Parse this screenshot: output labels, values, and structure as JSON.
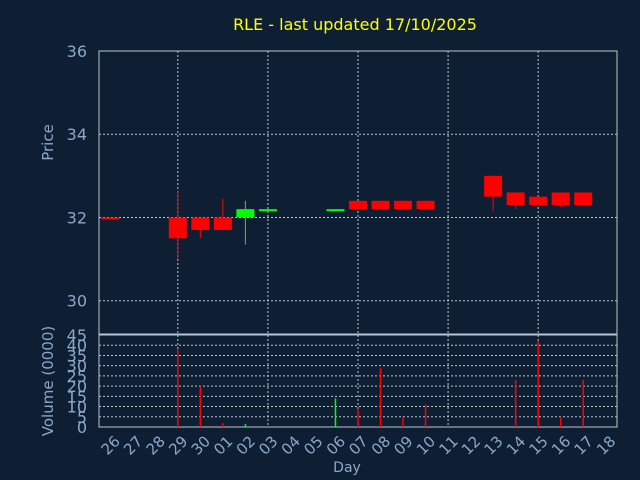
{
  "chart_data": {
    "type": "candlestick",
    "title": "RLE - last updated 17/10/2025",
    "ylabel": "Price",
    "volume_ylabel": "Volume (0000)",
    "xlabel": "Day",
    "x_tick_labels": [
      "26",
      "27",
      "28",
      "29",
      "30",
      "01",
      "02",
      "03",
      "04",
      "05",
      "06",
      "07",
      "08",
      "09",
      "10",
      "11",
      "12",
      "13",
      "14",
      "15",
      "16",
      "17",
      "18"
    ],
    "price_ylim": [
      29.2,
      36
    ],
    "price_ticks": [
      30,
      32,
      34,
      36
    ],
    "volume_ylim": [
      0,
      45
    ],
    "volume_ticks": [
      0,
      5,
      10,
      15,
      20,
      25,
      30,
      35,
      40,
      45
    ],
    "price_grid_days": [
      3,
      7,
      11,
      15,
      19
    ],
    "volume_grid_days": [
      3,
      7,
      11,
      15,
      19
    ],
    "grid": true,
    "colors": {
      "background": "#0f1f33",
      "title": "#ffff00",
      "axis_text": "#8aa8c8",
      "grid": "#b8c4d2",
      "up": "#00ff00",
      "down": "#ff0000"
    },
    "candles": [
      {
        "day": 0,
        "open": 32.0,
        "high": 32.0,
        "low": 32.0,
        "close": 32.0
      },
      {
        "day": 3,
        "open": 32.0,
        "high": 32.65,
        "low": 31.0,
        "close": 31.5
      },
      {
        "day": 4,
        "open": 32.0,
        "high": 32.0,
        "low": 31.5,
        "close": 31.7
      },
      {
        "day": 5,
        "open": 32.0,
        "high": 32.45,
        "low": 31.7,
        "close": 31.7
      },
      {
        "day": 6,
        "open": 32.0,
        "high": 32.4,
        "low": 31.35,
        "close": 32.2
      },
      {
        "day": 7,
        "open": 32.15,
        "high": 32.2,
        "low": 32.15,
        "close": 32.2
      },
      {
        "day": 10,
        "open": 32.15,
        "high": 32.2,
        "low": 32.15,
        "close": 32.2
      },
      {
        "day": 11,
        "open": 32.4,
        "high": 32.4,
        "low": 32.2,
        "close": 32.2
      },
      {
        "day": 12,
        "open": 32.4,
        "high": 32.4,
        "low": 32.2,
        "close": 32.2
      },
      {
        "day": 13,
        "open": 32.4,
        "high": 32.4,
        "low": 32.2,
        "close": 32.2
      },
      {
        "day": 14,
        "open": 32.4,
        "high": 32.4,
        "low": 32.2,
        "close": 32.2
      },
      {
        "day": 17,
        "open": 33.0,
        "high": 33.0,
        "low": 32.15,
        "close": 32.5
      },
      {
        "day": 18,
        "open": 32.6,
        "high": 32.6,
        "low": 32.2,
        "close": 32.3
      },
      {
        "day": 19,
        "open": 32.5,
        "high": 32.5,
        "low": 32.3,
        "close": 32.3
      },
      {
        "day": 20,
        "open": 32.6,
        "high": 32.6,
        "low": 32.25,
        "close": 32.3
      },
      {
        "day": 21,
        "open": 32.6,
        "high": 32.6,
        "low": 32.3,
        "close": 32.3
      }
    ],
    "volume": [
      {
        "day": 3,
        "value": 38,
        "color": "down"
      },
      {
        "day": 4,
        "value": 20,
        "color": "down"
      },
      {
        "day": 5,
        "value": 2,
        "color": "down"
      },
      {
        "day": 6,
        "value": 1.5,
        "color": "up"
      },
      {
        "day": 10,
        "value": 14,
        "color": "up"
      },
      {
        "day": 11,
        "value": 9,
        "color": "down"
      },
      {
        "day": 12,
        "value": 29,
        "color": "down"
      },
      {
        "day": 13,
        "value": 5,
        "color": "down"
      },
      {
        "day": 14,
        "value": 11,
        "color": "down"
      },
      {
        "day": 18,
        "value": 23,
        "color": "down"
      },
      {
        "day": 19,
        "value": 42,
        "color": "down"
      },
      {
        "day": 20,
        "value": 5,
        "color": "down"
      },
      {
        "day": 21,
        "value": 23,
        "color": "down"
      }
    ]
  }
}
